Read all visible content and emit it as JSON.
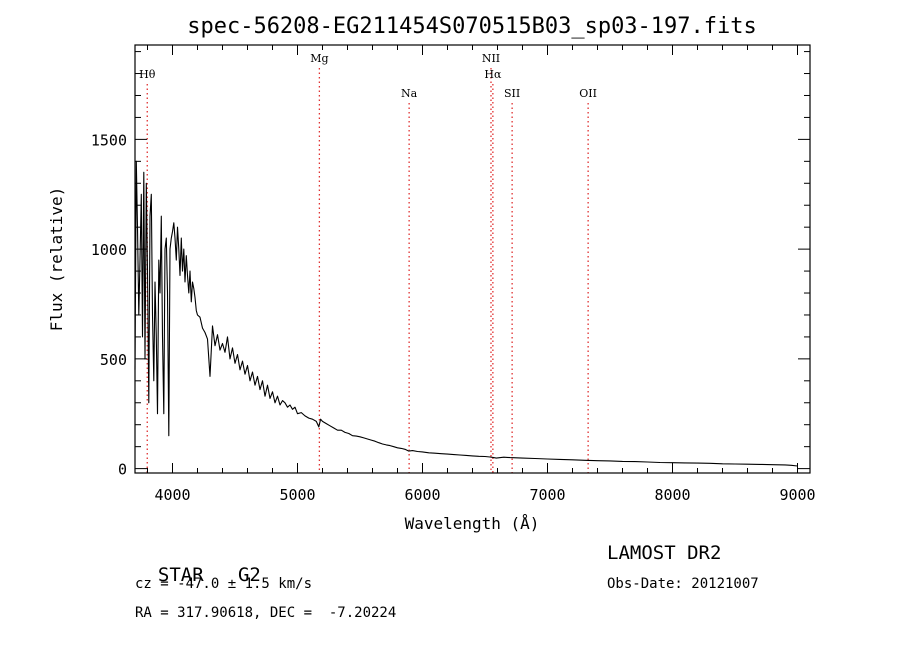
{
  "chart_data": {
    "type": "line",
    "title": "spec-56208-EG211454S070515B03_sp03-197.fits",
    "xlabel": "Wavelength (Å)",
    "ylabel": "Flux (relative)",
    "xlim": [
      3700,
      9100
    ],
    "ylim": [
      -20,
      1930
    ],
    "xticks": [
      4000,
      5000,
      6000,
      7000,
      8000,
      9000
    ],
    "yticks": [
      0,
      500,
      1000,
      1500
    ],
    "grid": false,
    "line_color": "#000000",
    "marker_color": "#e03030",
    "spectral_lines": [
      {
        "label": "Hθ",
        "x": 3798,
        "label_row": 1
      },
      {
        "label": "Mg",
        "x": 5175,
        "label_row": 0
      },
      {
        "label": "Na",
        "x": 5893,
        "label_row": 2
      },
      {
        "label": "NII",
        "x": 6548,
        "label_row": 0
      },
      {
        "label": "Hα",
        "x": 6563,
        "label_row": 1
      },
      {
        "label": "SII",
        "x": 6717,
        "label_row": 2
      },
      {
        "label": "OII",
        "x": 7325,
        "label_row": 2
      }
    ],
    "series": [
      {
        "x": [
          3700,
          3710,
          3720,
          3730,
          3740,
          3750,
          3760,
          3770,
          3780,
          3790,
          3800,
          3810,
          3820,
          3830,
          3840,
          3850,
          3860,
          3870,
          3880,
          3890,
          3900,
          3910,
          3920,
          3930,
          3940,
          3950,
          3960,
          3970,
          3980,
          3990,
          4000,
          4010,
          4020,
          4030,
          4040,
          4050,
          4060,
          4070,
          4080,
          4090,
          4100,
          4110,
          4120,
          4130,
          4140,
          4150,
          4160,
          4170,
          4180,
          4190,
          4200,
          4220,
          4240,
          4260,
          4280,
          4300,
          4320,
          4340,
          4360,
          4380,
          4400,
          4420,
          4440,
          4460,
          4480,
          4500,
          4520,
          4540,
          4560,
          4580,
          4600,
          4620,
          4640,
          4660,
          4680,
          4700,
          4720,
          4740,
          4760,
          4780,
          4800,
          4820,
          4840,
          4860,
          4880,
          4900,
          4920,
          4940,
          4960,
          4980,
          5000,
          5030,
          5060,
          5090,
          5120,
          5150,
          5170,
          5185,
          5200,
          5230,
          5260,
          5290,
          5320,
          5350,
          5380,
          5410,
          5440,
          5470,
          5500,
          5530,
          5560,
          5590,
          5620,
          5650,
          5680,
          5710,
          5740,
          5770,
          5800,
          5830,
          5860,
          5890,
          5920,
          5960,
          6000,
          6050,
          6100,
          6150,
          6200,
          6250,
          6300,
          6350,
          6400,
          6450,
          6500,
          6540,
          6563,
          6590,
          6650,
          6700,
          6800,
          6900,
          7000,
          7100,
          7200,
          7300,
          7400,
          7500,
          7600,
          7700,
          7800,
          7900,
          8000,
          8100,
          8200,
          8300,
          8400,
          8500,
          8600,
          8700,
          8800,
          8900,
          8950,
          9000
        ],
        "y": [
          450,
          1400,
          1100,
          700,
          950,
          1250,
          600,
          1350,
          500,
          1300,
          900,
          300,
          1150,
          1250,
          700,
          400,
          850,
          600,
          250,
          950,
          800,
          1150,
          600,
          250,
          1000,
          1050,
          800,
          150,
          1000,
          1050,
          1080,
          1120,
          1050,
          950,
          1100,
          1000,
          880,
          1050,
          900,
          1000,
          850,
          970,
          880,
          800,
          900,
          760,
          850,
          820,
          780,
          720,
          700,
          690,
          640,
          620,
          590,
          420,
          650,
          560,
          610,
          540,
          570,
          530,
          600,
          500,
          550,
          480,
          520,
          450,
          490,
          430,
          470,
          400,
          440,
          380,
          420,
          360,
          400,
          330,
          380,
          320,
          350,
          300,
          330,
          290,
          310,
          300,
          280,
          290,
          270,
          280,
          250,
          255,
          240,
          230,
          225,
          215,
          190,
          225,
          215,
          205,
          195,
          185,
          175,
          175,
          165,
          160,
          150,
          148,
          145,
          140,
          135,
          130,
          125,
          118,
          112,
          108,
          105,
          100,
          95,
          92,
          88,
          80,
          82,
          78,
          76,
          72,
          70,
          68,
          66,
          64,
          62,
          60,
          58,
          56,
          55,
          53,
          51,
          48,
          52,
          50,
          48,
          46,
          44,
          42,
          40,
          38,
          36,
          35,
          33,
          32,
          30,
          28,
          27,
          26,
          25,
          24,
          22,
          21,
          20,
          19,
          18,
          17,
          15,
          12
        ]
      }
    ]
  },
  "info": {
    "class": "STAR",
    "subclass": "G2",
    "survey": "LAMOST DR2",
    "cz": "cz = -47.0 ± 1.5 km/s",
    "obs_date": "Obs-Date: 20121007",
    "coords": "RA = 317.90618, DEC =  -7.20224"
  }
}
